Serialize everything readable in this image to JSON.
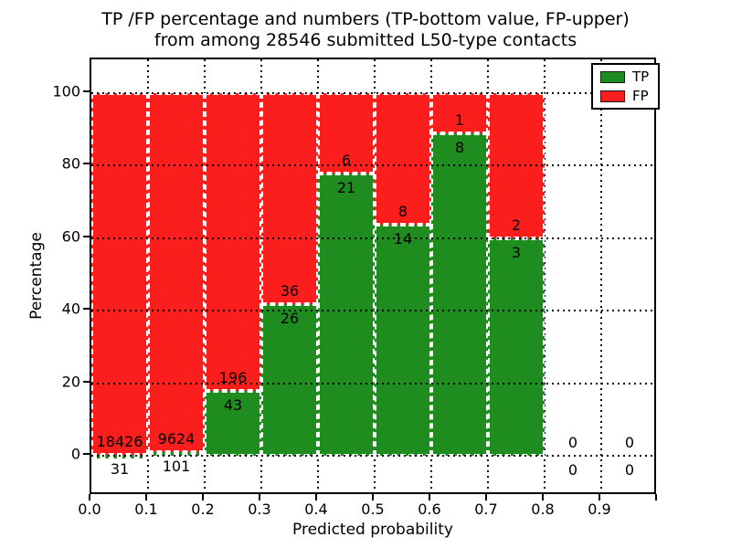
{
  "figure": {
    "title_line1": "TP /FP percentage and numbers (TP-bottom value, FP-upper)",
    "title_line2": "from among 28546 submitted L50-type contacts",
    "xlabel": "Predicted probability",
    "ylabel": "Percentage"
  },
  "legend": {
    "items": [
      {
        "label": "TP",
        "color": "#1e8c1e"
      },
      {
        "label": "FP",
        "color": "#fc1d1d"
      }
    ]
  },
  "chart_data": {
    "type": "bar",
    "stacked": true,
    "title": "TP /FP percentage and numbers (TP-bottom value, FP-upper) from among 28546 submitted L50-type contacts",
    "xlabel": "Predicted probability",
    "ylabel": "Percentage",
    "total_contacts": 28546,
    "x_tick_labels": [
      "0.0",
      "0.1",
      "0.2",
      "0.3",
      "0.4",
      "0.5",
      "0.6",
      "0.7",
      "0.8",
      "0.9"
    ],
    "y_tick_values": [
      0,
      20,
      40,
      60,
      80,
      100
    ],
    "xlim": [
      0.0,
      1.0
    ],
    "ylim": [
      -11,
      109
    ],
    "bin_width": 0.1,
    "grid": true,
    "grid_style": "dotted",
    "legend_position": "upper right",
    "colors": {
      "tp": "#1e8c1e",
      "fp": "#fc1d1d",
      "bar_edge": "#ffffff"
    },
    "bins": [
      {
        "range": "0.0-0.1",
        "tp": 31,
        "fp": 18426,
        "tp_pct": 0.17,
        "fp_pct": 99.83
      },
      {
        "range": "0.1-0.2",
        "tp": 101,
        "fp": 9624,
        "tp_pct": 1.04,
        "fp_pct": 98.96
      },
      {
        "range": "0.2-0.3",
        "tp": 43,
        "fp": 196,
        "tp_pct": 17.99,
        "fp_pct": 82.01
      },
      {
        "range": "0.3-0.4",
        "tp": 26,
        "fp": 36,
        "tp_pct": 41.94,
        "fp_pct": 58.06
      },
      {
        "range": "0.4-0.5",
        "tp": 21,
        "fp": 6,
        "tp_pct": 77.78,
        "fp_pct": 22.22
      },
      {
        "range": "0.5-0.6",
        "tp": 14,
        "fp": 8,
        "tp_pct": 63.64,
        "fp_pct": 36.36
      },
      {
        "range": "0.6-0.7",
        "tp": 8,
        "fp": 1,
        "tp_pct": 88.89,
        "fp_pct": 11.11
      },
      {
        "range": "0.7-0.8",
        "tp": 3,
        "fp": 2,
        "tp_pct": 60.0,
        "fp_pct": 40.0
      },
      {
        "range": "0.8-0.9",
        "tp": 0,
        "fp": 0,
        "tp_pct": 0,
        "fp_pct": 0
      },
      {
        "range": "0.9-1.0",
        "tp": 0,
        "fp": 0,
        "tp_pct": 0,
        "fp_pct": 0
      }
    ],
    "series": [
      {
        "name": "TP",
        "values": [
          31,
          101,
          43,
          26,
          21,
          14,
          8,
          3,
          0,
          0
        ]
      },
      {
        "name": "FP",
        "values": [
          18426,
          9624,
          196,
          36,
          6,
          8,
          1,
          2,
          0,
          0
        ]
      }
    ]
  }
}
